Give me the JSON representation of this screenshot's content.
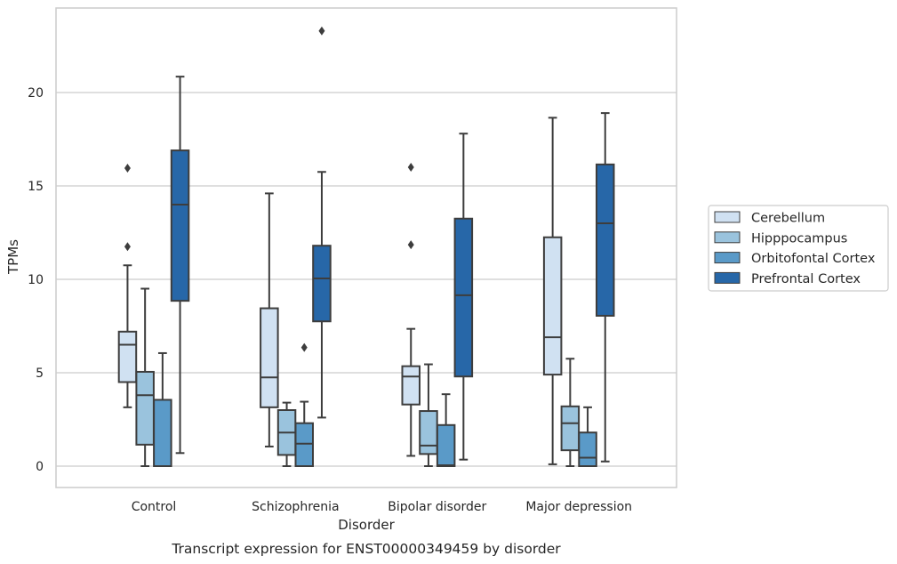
{
  "chart_data": {
    "type": "box",
    "caption": "Transcript expression for ENST00000349459 by disorder",
    "xlabel": "Disorder",
    "ylabel": "TPMs",
    "ylim": [
      -1.1,
      24.6
    ],
    "yticks": [
      0,
      5,
      10,
      15,
      20
    ],
    "grid": "horizontal",
    "legend_position": "right",
    "categories": [
      "Control",
      "Schizophrenia",
      "Bipolar disorder",
      "Major depression"
    ],
    "series": [
      {
        "name": "Cerebellum",
        "color": "#d0e1f2",
        "boxes": [
          {
            "whisker_low": 3.15,
            "q1": 4.5,
            "median": 6.5,
            "q3": 7.2,
            "whisker_high": 10.75,
            "outliers": [
              11.75,
              15.95
            ]
          },
          {
            "whisker_low": 1.05,
            "q1": 3.15,
            "median": 4.75,
            "q3": 8.45,
            "whisker_high": 14.6,
            "outliers": []
          },
          {
            "whisker_low": 0.55,
            "q1": 3.3,
            "median": 4.8,
            "q3": 5.35,
            "whisker_high": 7.35,
            "outliers": [
              11.85,
              16.0
            ]
          },
          {
            "whisker_low": 0.1,
            "q1": 4.9,
            "median": 6.9,
            "q3": 12.25,
            "whisker_high": 18.65,
            "outliers": []
          }
        ]
      },
      {
        "name": "Hipppocampus",
        "color": "#9ac3dd",
        "boxes": [
          {
            "whisker_low": 0.0,
            "q1": 1.15,
            "median": 3.8,
            "q3": 5.05,
            "whisker_high": 9.5,
            "outliers": []
          },
          {
            "whisker_low": 0.0,
            "q1": 0.6,
            "median": 1.8,
            "q3": 3.0,
            "whisker_high": 3.4,
            "outliers": []
          },
          {
            "whisker_low": 0.0,
            "q1": 0.65,
            "median": 1.1,
            "q3": 2.95,
            "whisker_high": 5.45,
            "outliers": []
          },
          {
            "whisker_low": 0.0,
            "q1": 0.85,
            "median": 2.3,
            "q3": 3.2,
            "whisker_high": 5.75,
            "outliers": []
          }
        ]
      },
      {
        "name": "Orbitofontal Cortex",
        "color": "#5a9ac8",
        "boxes": [
          {
            "whisker_low": 0.0,
            "q1": 0.0,
            "median": 0.0,
            "q3": 3.55,
            "whisker_high": 6.05,
            "outliers": []
          },
          {
            "whisker_low": 0.0,
            "q1": 0.0,
            "median": 1.2,
            "q3": 2.3,
            "whisker_high": 3.45,
            "outliers": [
              6.35
            ]
          },
          {
            "whisker_low": 0.0,
            "q1": 0.0,
            "median": 0.05,
            "q3": 2.2,
            "whisker_high": 3.85,
            "outliers": []
          },
          {
            "whisker_low": 0.0,
            "q1": 0.0,
            "median": 0.45,
            "q3": 1.8,
            "whisker_high": 3.15,
            "outliers": []
          }
        ]
      },
      {
        "name": "Prefrontal Cortex",
        "color": "#2767a8",
        "boxes": [
          {
            "whisker_low": 0.7,
            "q1": 8.85,
            "median": 14.0,
            "q3": 16.9,
            "whisker_high": 20.85,
            "outliers": []
          },
          {
            "whisker_low": 2.6,
            "q1": 7.75,
            "median": 10.05,
            "q3": 11.8,
            "whisker_high": 15.75,
            "outliers": [
              23.3
            ]
          },
          {
            "whisker_low": 0.35,
            "q1": 4.8,
            "median": 9.15,
            "q3": 13.25,
            "whisker_high": 17.8,
            "outliers": []
          },
          {
            "whisker_low": 0.25,
            "q1": 8.05,
            "median": 13.0,
            "q3": 16.15,
            "whisker_high": 18.9,
            "outliers": []
          }
        ]
      }
    ]
  }
}
